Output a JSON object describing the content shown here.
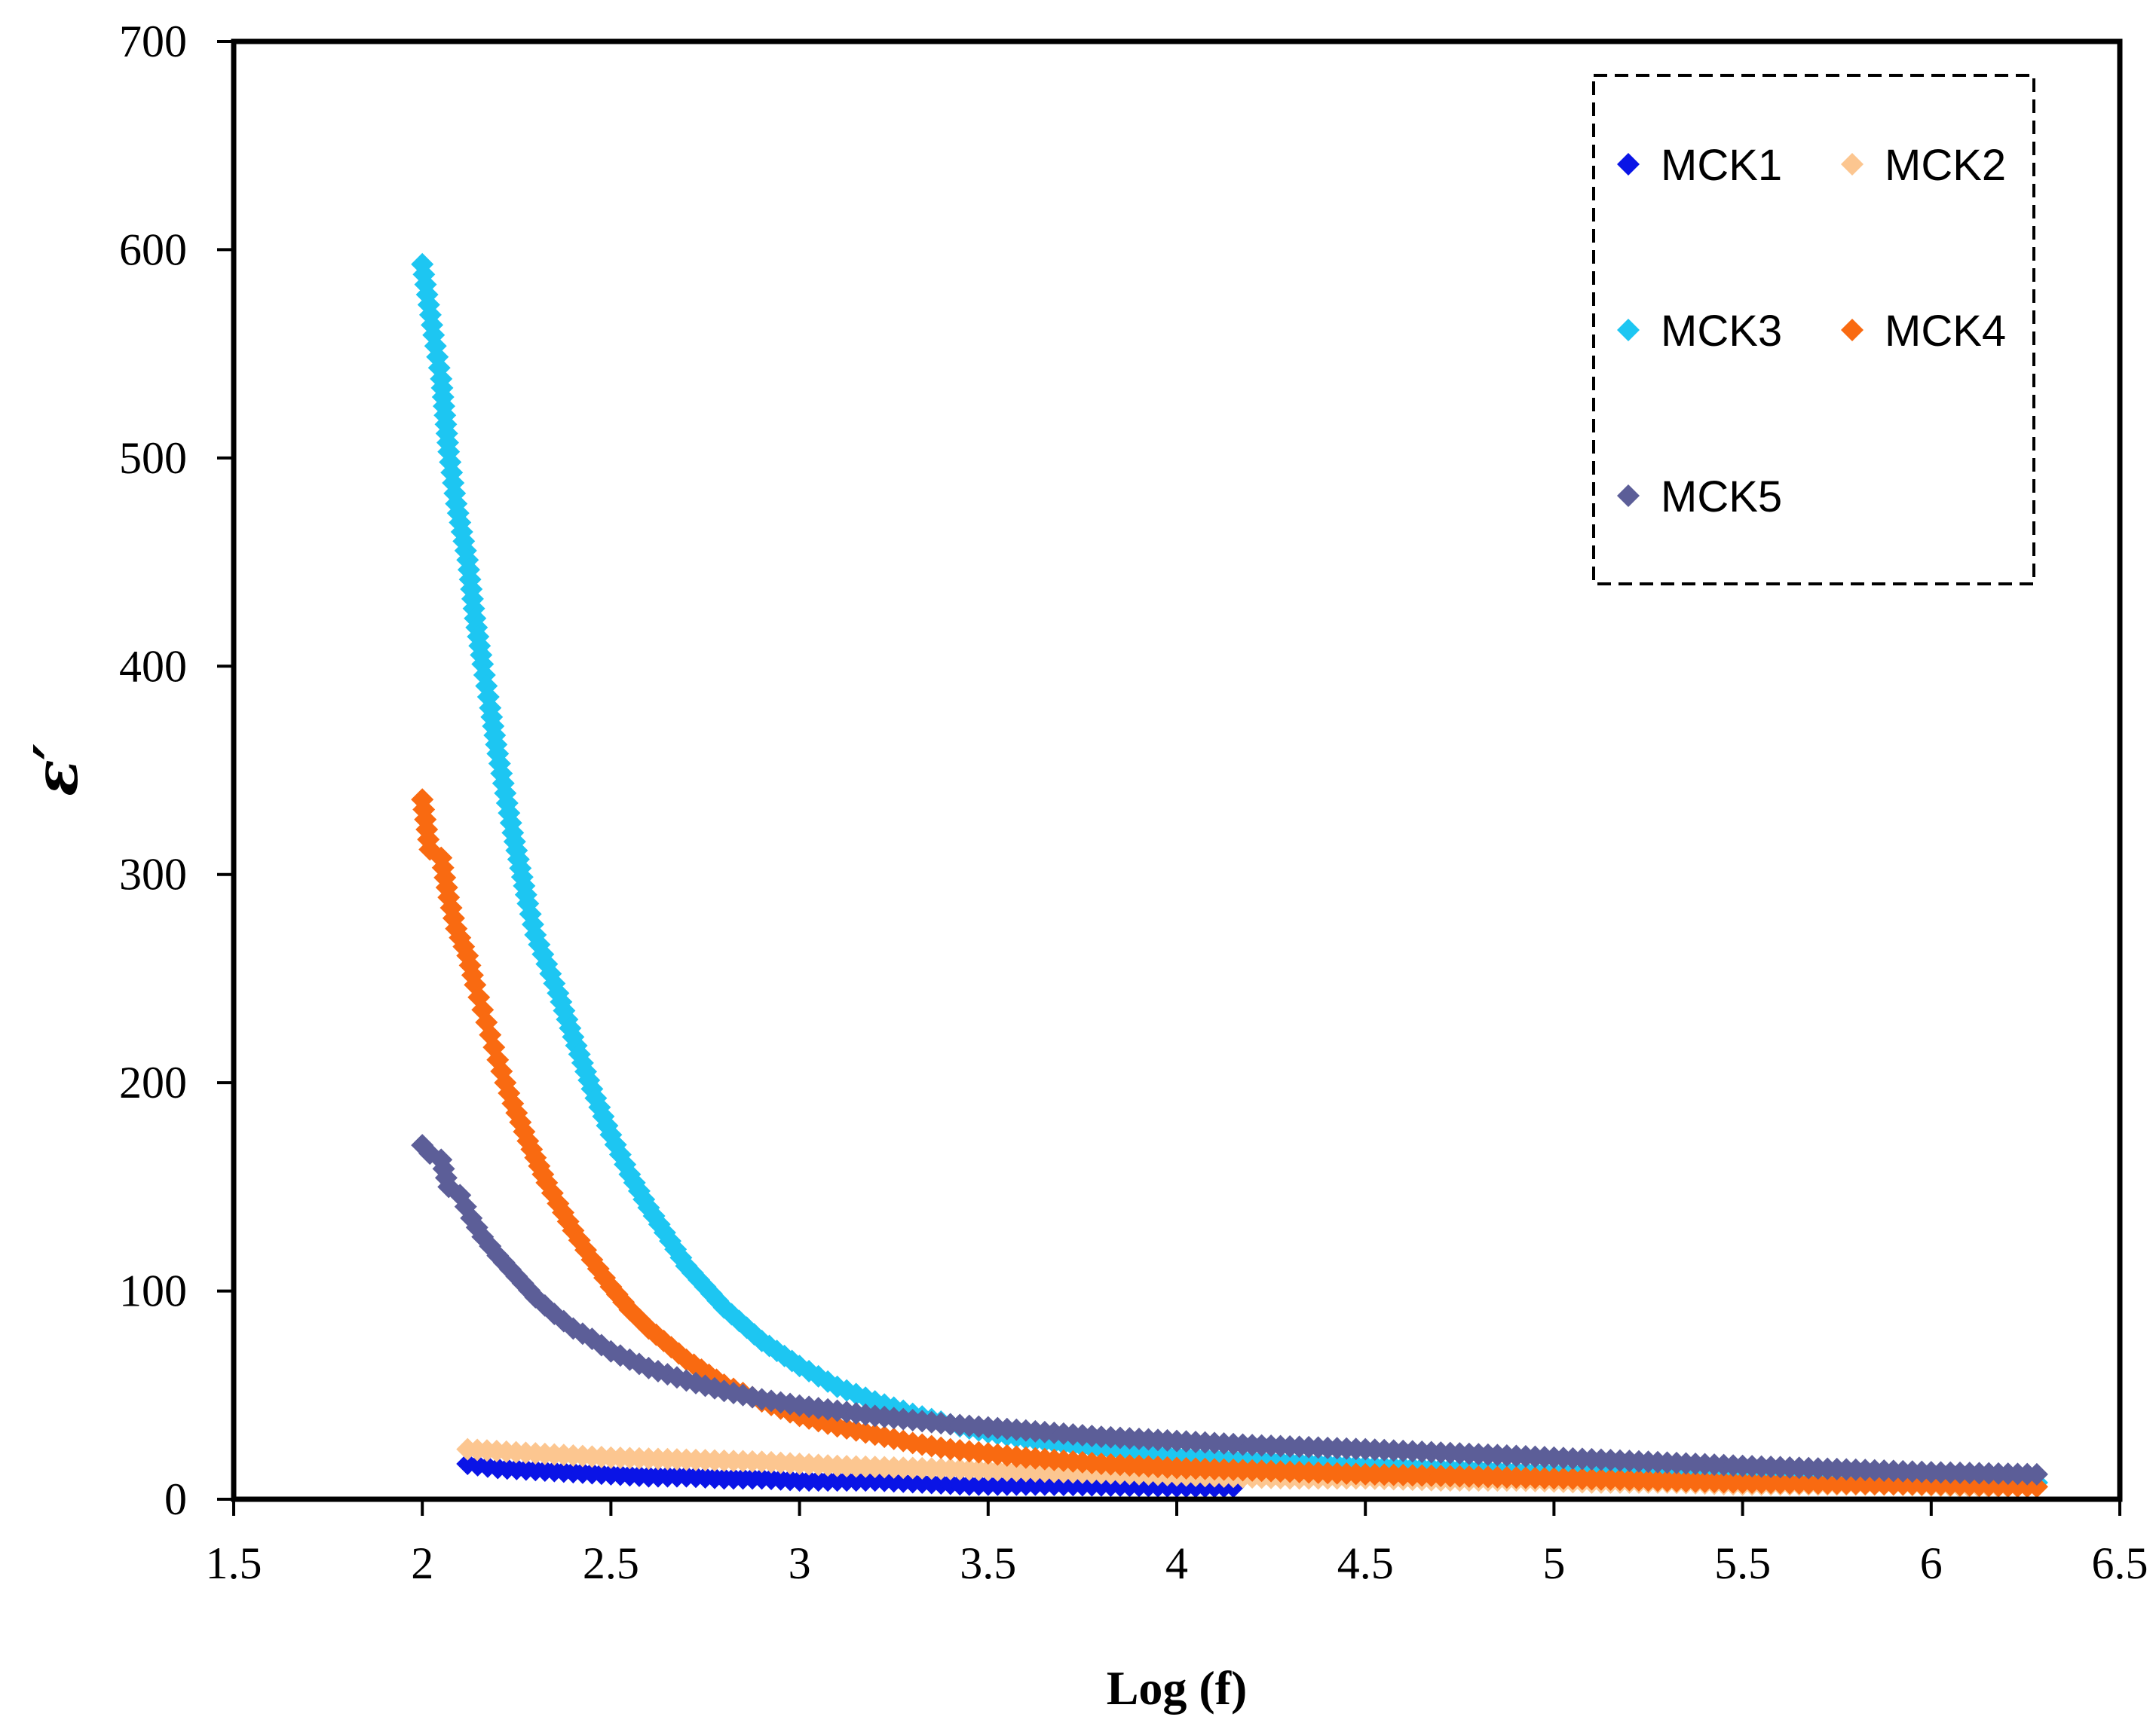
{
  "chart_data": {
    "type": "scatter",
    "title": "",
    "xlabel": "Log (f)",
    "ylabel": "ε′",
    "xlim": [
      1.5,
      6.5
    ],
    "ylim": [
      0,
      700
    ],
    "x_ticks": [
      "1.5",
      "2",
      "2.5",
      "3",
      "3.5",
      "4",
      "4.5",
      "5",
      "5.5",
      "6",
      "6.5"
    ],
    "y_ticks": [
      "0",
      "100",
      "200",
      "300",
      "400",
      "500",
      "600",
      "700"
    ],
    "grid": false,
    "legend_position": "top-right",
    "marker": "diamond",
    "series": [
      {
        "name": "MCK1",
        "color": "#0a14e6",
        "x": [
          2.12,
          2.2,
          2.3,
          2.4,
          2.5,
          2.6,
          2.7,
          2.8,
          2.9,
          3.0,
          3.1,
          3.2,
          3.45,
          3.55,
          3.65,
          4.05,
          4.15
        ],
        "y": [
          17,
          15,
          14,
          13,
          12,
          11,
          11,
          10,
          10,
          9,
          9,
          9,
          7,
          7,
          7,
          6,
          6
        ]
      },
      {
        "name": "MCK2",
        "color": "#fcc690",
        "x": [
          2.12,
          2.3,
          2.5,
          2.7,
          2.9,
          3.1,
          3.3,
          3.5,
          3.7,
          3.9,
          4.1,
          4.3,
          4.5,
          4.7,
          4.9,
          5.1,
          5.3,
          5.5,
          5.7,
          5.9,
          6.1,
          6.28
        ],
        "y": [
          24,
          22,
          20,
          19,
          18,
          16,
          15,
          14,
          13,
          12,
          11,
          10,
          10,
          9,
          9,
          8,
          8,
          7,
          7,
          7,
          6,
          6
        ]
      },
      {
        "name": "MCK3",
        "color": "#1dc6f2",
        "x": [
          2.0,
          2.03,
          2.05,
          2.07,
          2.09,
          2.12,
          2.14,
          2.16,
          2.18,
          2.2,
          2.22,
          2.24,
          2.26,
          2.28,
          2.3,
          2.33,
          2.36,
          2.4,
          2.45,
          2.5,
          2.55,
          2.6,
          2.7,
          2.8,
          2.9,
          3.0,
          3.1,
          3.2,
          3.3,
          3.4,
          3.5,
          3.6,
          3.8,
          4.0,
          4.5,
          5.0,
          5.5,
          6.0,
          6.28
        ],
        "y": [
          593,
          559,
          538,
          503,
          478,
          451,
          423,
          401,
          380,
          358,
          339,
          320,
          303,
          286,
          271,
          257,
          243,
          222,
          197,
          175,
          156,
          140,
          112,
          92,
          76,
          64,
          54,
          47,
          41,
          36,
          32,
          29,
          24,
          21,
          16,
          13,
          11,
          9,
          8
        ]
      },
      {
        "name": "MCK4",
        "color": "#f96a11",
        "x": [
          2.0,
          2.02,
          2.05,
          2.07,
          2.09,
          2.12,
          2.14,
          2.16,
          2.18,
          2.2,
          2.22,
          2.24,
          2.26,
          2.28,
          2.3,
          2.33,
          2.36,
          2.4,
          2.45,
          2.5,
          2.55,
          2.6,
          2.7,
          2.8,
          2.9,
          3.0,
          3.1,
          3.2,
          3.3,
          3.4,
          3.5,
          3.6,
          3.8,
          4.0,
          4.5,
          5.0,
          5.5,
          6.0,
          6.28
        ],
        "y": [
          336,
          312,
          308,
          289,
          274,
          261,
          247,
          235,
          223,
          211,
          200,
          190,
          181,
          172,
          164,
          152,
          142,
          129,
          115,
          102,
          91,
          82,
          67,
          55,
          47,
          40,
          35,
          31,
          27,
          24,
          22,
          20,
          17,
          15,
          12,
          10,
          8,
          7,
          6
        ]
      },
      {
        "name": "MCK5",
        "color": "#5c5e98",
        "x": [
          2.0,
          2.02,
          2.05,
          2.07,
          2.1,
          2.13,
          2.16,
          2.2,
          2.25,
          2.3,
          2.35,
          2.4,
          2.45,
          2.5,
          2.6,
          2.7,
          2.8,
          2.9,
          3.0,
          3.2,
          3.4,
          3.6,
          3.8,
          4.0,
          4.2,
          4.5,
          5.0,
          5.5,
          6.0,
          6.28
        ],
        "y": [
          170,
          166,
          163,
          150,
          146,
          135,
          126,
          117,
          107,
          97,
          89,
          82,
          77,
          71,
          63,
          57,
          52,
          48,
          45,
          40,
          36,
          33,
          30,
          28,
          26,
          24,
          20,
          16,
          13,
          12
        ]
      }
    ]
  }
}
